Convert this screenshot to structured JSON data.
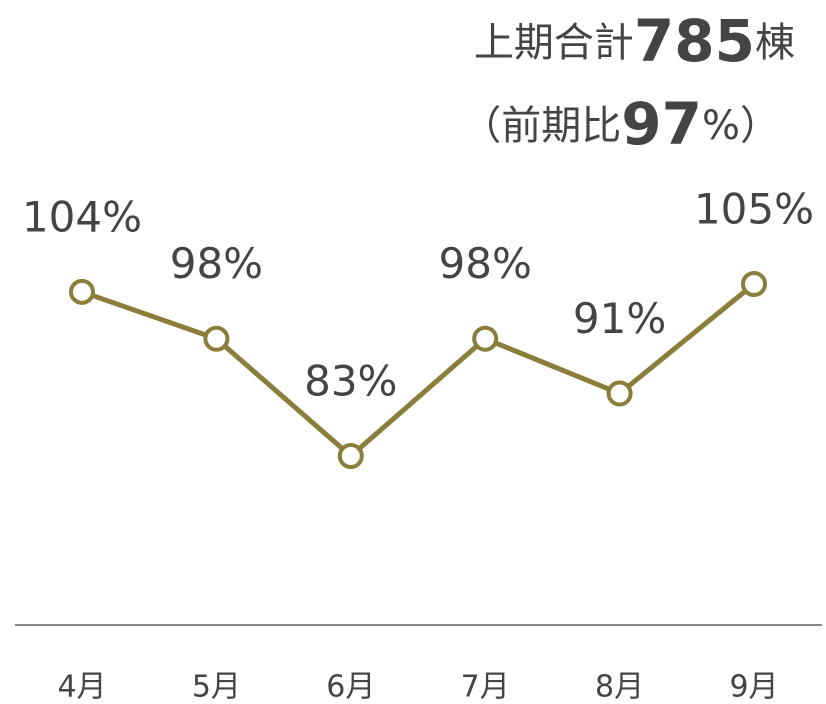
{
  "chart_data": {
    "type": "line",
    "annotation": {
      "line1": [
        "上期合計",
        "785",
        "棟"
      ],
      "line2": [
        "（前期比",
        "97",
        "%）"
      ]
    },
    "categories": [
      "4月",
      "5月",
      "6月",
      "7月",
      "8月",
      "9月"
    ],
    "series": [
      {
        "color": "#8b7d3a",
        "values": [
          104,
          98,
          83,
          98,
          91,
          105
        ],
        "value_labels": [
          "104%",
          "98%",
          "83%",
          "98%",
          "91%",
          "105%"
        ]
      }
    ]
  }
}
